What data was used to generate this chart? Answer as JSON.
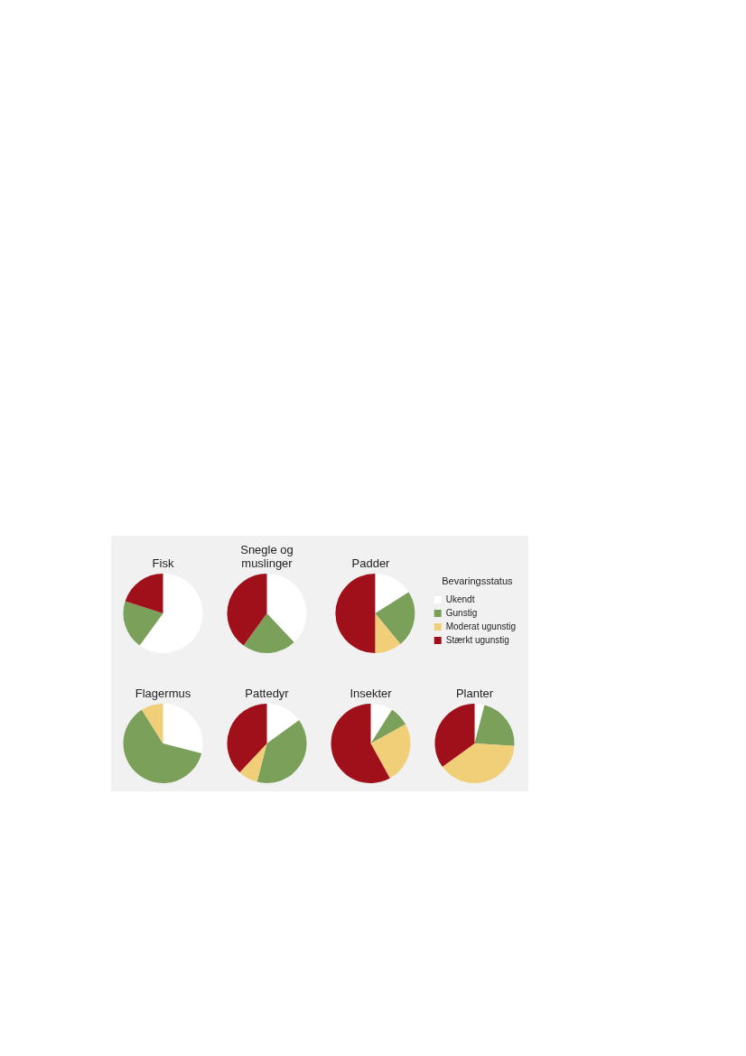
{
  "chart_data": [
    {
      "type": "pie",
      "title": "Fisk",
      "categories": [
        null,
        null,
        null,
        null
      ],
      "values": [
        60,
        20,
        0,
        20
      ],
      "colors": [
        "#ffffff",
        "#7aa05a",
        "#f0cf78",
        "#a0101a"
      ],
      "legend": false
    },
    {
      "type": "pie",
      "title": "Snegle og muslinger",
      "categories": [
        null,
        null,
        null,
        null
      ],
      "values": [
        38,
        22,
        0,
        40
      ],
      "colors": [
        "#ffffff",
        "#7aa05a",
        "#f0cf78",
        "#a0101a"
      ],
      "legend": false
    },
    {
      "type": "pie",
      "title": "Padder",
      "categories": [
        "Ukendt",
        "Gunstig",
        "Moderat ugunstig",
        "Stærkt ugunstig"
      ],
      "values": [
        16,
        23,
        11,
        50
      ],
      "colors": [
        "#ffffff",
        "#7aa05a",
        "#f0cf78",
        "#a0101a"
      ],
      "legend": "right",
      "legend_title": "Bevaringsstatus"
    },
    {
      "type": "pie",
      "title": "Flagermus",
      "categories": [
        null,
        null,
        null,
        null
      ],
      "values": [
        29,
        62,
        9,
        0
      ],
      "colors": [
        "#ffffff",
        "#7aa05a",
        "#f0cf78",
        "#a0101a"
      ],
      "legend": false
    },
    {
      "type": "pie",
      "title": "Pattedyr",
      "categories": [
        null,
        null,
        null,
        null
      ],
      "values": [
        15,
        39,
        8,
        38
      ],
      "colors": [
        "#ffffff",
        "#7aa05a",
        "#f0cf78",
        "#a0101a"
      ],
      "legend": false
    },
    {
      "type": "pie",
      "title": "Insekter",
      "categories": [
        null,
        null,
        null,
        null
      ],
      "values": [
        9,
        8,
        25,
        58
      ],
      "colors": [
        "#ffffff",
        "#7aa05a",
        "#f0cf78",
        "#a0101a"
      ],
      "legend": false
    },
    {
      "type": "pie",
      "title": "Planter",
      "categories": [
        null,
        null,
        null,
        null
      ],
      "values": [
        4,
        22,
        39,
        35
      ],
      "colors": [
        "#ffffff",
        "#7aa05a",
        "#f0cf78",
        "#a0101a"
      ],
      "legend": false
    }
  ]
}
